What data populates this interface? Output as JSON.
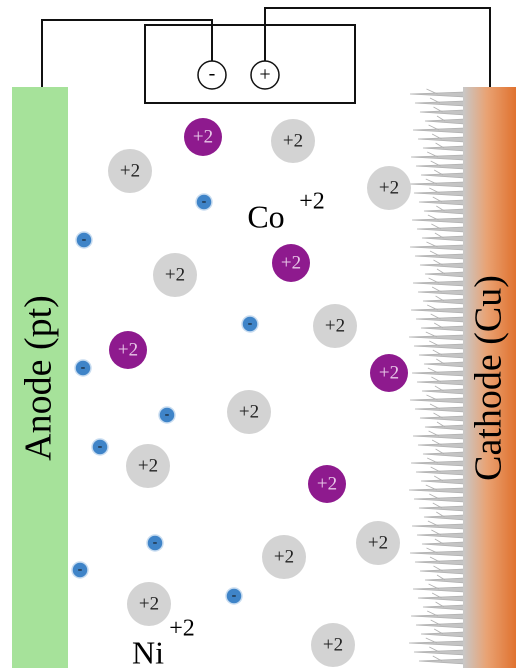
{
  "battery": {
    "negative": "-",
    "positive": "+"
  },
  "anode": {
    "label": "Anode (pt)"
  },
  "cathode": {
    "label": "Cathode (Cu)"
  },
  "species": [
    {
      "symbol": "Co",
      "charge": "+2"
    },
    {
      "symbol": "Ni",
      "charge": "+2"
    }
  ],
  "cobalt_ions": [
    "+2",
    "+2",
    "+2",
    "+2",
    "+2"
  ],
  "nickel_ions": [
    "+2",
    "+2",
    "+2",
    "+2",
    "+2",
    "+2",
    "+2",
    "+2",
    "+2",
    "+2",
    "+2"
  ],
  "electrons": [
    "-",
    "-",
    "-",
    "-",
    "-",
    "-",
    "-",
    "-",
    "-"
  ]
}
